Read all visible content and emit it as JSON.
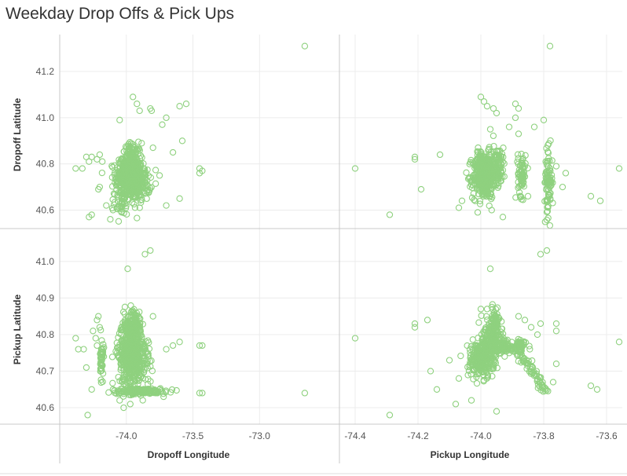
{
  "title": "Weekday Drop Offs & Pick Ups",
  "colors": {
    "point": "#8fd17f",
    "gridline": "#ececec",
    "panel_border": "#c8c8c8"
  },
  "chart_data": {
    "type": "scatter",
    "title": "Weekday Drop Offs & Pick Ups",
    "grid": true,
    "columns": [
      {
        "label": "Dropoff Longitude",
        "xlim": [
          -74.5,
          -72.4
        ],
        "ticks": [
          -74.0,
          -73.5,
          -73.0
        ]
      },
      {
        "label": "Pickup Longitude",
        "xlim": [
          -74.45,
          -73.55
        ],
        "ticks": [
          -74.4,
          -74.2,
          -74.0,
          -73.8,
          -73.6
        ]
      }
    ],
    "rows": [
      {
        "label": "Dropoff Latitude",
        "ylim": [
          40.52,
          41.36
        ],
        "ticks": [
          40.6,
          40.8,
          41.0,
          41.2
        ]
      },
      {
        "label": "Pickup Latitude",
        "ylim": [
          40.555,
          41.09
        ],
        "ticks": [
          40.6,
          40.7,
          40.8,
          40.9,
          41.0
        ]
      }
    ],
    "panels": [
      {
        "row": "Dropoff Latitude",
        "column": "Dropoff Longitude",
        "clusters": [
          {
            "x": -73.98,
            "y": 40.74,
            "sx": 0.05,
            "sy": 0.045,
            "n": 420
          },
          {
            "x": -73.96,
            "y": 40.83,
            "sx": 0.035,
            "sy": 0.03,
            "n": 90
          },
          {
            "x": -73.9,
            "y": 40.72,
            "sx": 0.04,
            "sy": 0.04,
            "n": 120
          },
          {
            "x": -74.03,
            "y": 40.63,
            "sx": 0.03,
            "sy": 0.025,
            "n": 40
          }
        ],
        "points": [
          [
            -72.66,
            41.31
          ],
          [
            -74.38,
            40.78
          ],
          [
            -74.33,
            40.78
          ],
          [
            -74.3,
            40.83
          ],
          [
            -74.28,
            40.81
          ],
          [
            -74.26,
            40.83
          ],
          [
            -74.22,
            40.82
          ],
          [
            -74.2,
            40.84
          ],
          [
            -74.18,
            40.81
          ],
          [
            -74.28,
            40.57
          ],
          [
            -74.26,
            40.58
          ],
          [
            -74.2,
            40.7
          ],
          [
            -74.21,
            40.69
          ],
          [
            -74.15,
            40.62
          ],
          [
            -73.95,
            41.09
          ],
          [
            -73.92,
            41.06
          ],
          [
            -73.82,
            41.04
          ],
          [
            -73.81,
            41.03
          ],
          [
            -73.6,
            41.05
          ],
          [
            -73.55,
            41.06
          ],
          [
            -73.7,
            41.0
          ],
          [
            -73.73,
            40.97
          ],
          [
            -73.9,
            41.03
          ],
          [
            -74.05,
            40.99
          ],
          [
            -73.58,
            40.9
          ],
          [
            -73.65,
            40.85
          ],
          [
            -73.45,
            40.78
          ],
          [
            -73.43,
            40.77
          ],
          [
            -73.45,
            40.76
          ],
          [
            -73.6,
            40.65
          ],
          [
            -73.7,
            40.62
          ],
          [
            -74.12,
            40.56
          ],
          [
            -74.1,
            40.6
          ],
          [
            -73.8,
            40.87
          ],
          [
            -73.75,
            40.75
          ]
        ]
      },
      {
        "row": "Dropoff Latitude",
        "column": "Pickup Longitude",
        "clusters": [
          {
            "x": -73.99,
            "y": 40.75,
            "sx": 0.018,
            "sy": 0.05,
            "n": 420
          },
          {
            "x": -73.95,
            "y": 40.79,
            "sx": 0.015,
            "sy": 0.04,
            "n": 110
          },
          {
            "x": -73.87,
            "y": 40.76,
            "sx": 0.006,
            "sy": 0.05,
            "n": 70
          },
          {
            "x": -73.785,
            "y": 40.72,
            "sx": 0.006,
            "sy": 0.07,
            "n": 90
          }
        ],
        "points": [
          [
            -73.78,
            41.31
          ],
          [
            -74.4,
            40.78
          ],
          [
            -74.29,
            40.58
          ],
          [
            -74.21,
            40.83
          ],
          [
            -74.21,
            40.82
          ],
          [
            -74.13,
            40.84
          ],
          [
            -74.19,
            40.69
          ],
          [
            -74.03,
            40.71
          ],
          [
            -74.07,
            40.61
          ],
          [
            -74.06,
            40.64
          ],
          [
            -74.0,
            41.09
          ],
          [
            -73.99,
            41.07
          ],
          [
            -73.98,
            41.05
          ],
          [
            -73.96,
            41.04
          ],
          [
            -73.89,
            41.06
          ],
          [
            -73.88,
            41.04
          ],
          [
            -73.89,
            41.0
          ],
          [
            -73.88,
            40.93
          ],
          [
            -73.8,
            40.99
          ],
          [
            -73.83,
            40.96
          ],
          [
            -73.91,
            40.96
          ],
          [
            -73.76,
            40.79
          ],
          [
            -73.74,
            40.7
          ],
          [
            -73.73,
            40.76
          ],
          [
            -73.65,
            40.66
          ],
          [
            -73.62,
            40.64
          ],
          [
            -73.56,
            40.78
          ],
          [
            -73.95,
            41.02
          ],
          [
            -73.97,
            40.95
          ],
          [
            -74.01,
            40.59
          ],
          [
            -73.93,
            40.57
          ],
          [
            -73.85,
            40.66
          ]
        ]
      },
      {
        "row": "Pickup Latitude",
        "column": "Dropoff Longitude",
        "clusters": [
          {
            "x": -73.97,
            "y": 40.75,
            "sx": 0.045,
            "sy": 0.045,
            "n": 460
          },
          {
            "x": -73.95,
            "y": 40.82,
            "sx": 0.03,
            "sy": 0.03,
            "n": 90
          },
          {
            "x": -74.185,
            "y": 40.73,
            "sx": 0.006,
            "sy": 0.03,
            "n": 45
          },
          {
            "x": -73.9,
            "y": 40.645,
            "sx": 0.1,
            "sy": 0.004,
            "n": 160
          },
          {
            "x": -73.88,
            "y": 40.74,
            "sx": 0.04,
            "sy": 0.035,
            "n": 80
          }
        ],
        "points": [
          [
            -73.99,
            40.98
          ],
          [
            -73.86,
            41.02
          ],
          [
            -73.82,
            41.03
          ],
          [
            -72.66,
            40.64
          ],
          [
            -74.38,
            40.79
          ],
          [
            -74.36,
            40.76
          ],
          [
            -74.32,
            40.76
          ],
          [
            -74.3,
            40.71
          ],
          [
            -74.29,
            40.58
          ],
          [
            -74.26,
            40.65
          ],
          [
            -74.22,
            40.77
          ],
          [
            -74.2,
            40.82
          ],
          [
            -74.21,
            40.85
          ],
          [
            -74.22,
            40.84
          ],
          [
            -74.25,
            40.81
          ],
          [
            -74.23,
            40.79
          ],
          [
            -74.05,
            40.62
          ],
          [
            -74.02,
            40.6
          ],
          [
            -73.97,
            40.61
          ],
          [
            -73.45,
            40.77
          ],
          [
            -73.43,
            40.77
          ],
          [
            -73.45,
            40.64
          ],
          [
            -73.43,
            40.64
          ],
          [
            -73.6,
            40.78
          ],
          [
            -73.65,
            40.77
          ],
          [
            -73.7,
            40.76
          ],
          [
            -73.75,
            40.65
          ],
          [
            -73.72,
            40.63
          ],
          [
            -73.8,
            40.85
          ],
          [
            -74.1,
            40.65
          ]
        ]
      },
      {
        "row": "Pickup Latitude",
        "column": "Pickup Longitude",
        "clusters": [
          {
            "x": -74.0,
            "y": 40.73,
            "sx": 0.02,
            "sy": 0.025,
            "n": 230
          },
          {
            "x": -73.97,
            "y": 40.78,
            "sx": 0.018,
            "sy": 0.03,
            "n": 170
          },
          {
            "x": -73.955,
            "y": 40.83,
            "sx": 0.01,
            "sy": 0.025,
            "n": 70
          },
          {
            "x": -73.93,
            "y": 40.765,
            "sx": 0.035,
            "sy": 0.007,
            "n": 110
          },
          {
            "x": -73.875,
            "y": 40.77,
            "sx": 0.005,
            "sy": 0.008,
            "n": 40
          }
        ],
        "line": {
          "from": [
            -73.89,
            40.76
          ],
          "to": [
            -73.79,
            40.645
          ],
          "n": 70,
          "jitter": 0.006
        },
        "points": [
          [
            -73.97,
            40.98
          ],
          [
            -73.81,
            41.02
          ],
          [
            -73.79,
            41.03
          ],
          [
            -74.4,
            40.79
          ],
          [
            -74.29,
            40.58
          ],
          [
            -74.21,
            40.83
          ],
          [
            -74.21,
            40.82
          ],
          [
            -74.17,
            40.84
          ],
          [
            -74.16,
            40.7
          ],
          [
            -74.14,
            40.65
          ],
          [
            -74.1,
            40.73
          ],
          [
            -74.07,
            40.68
          ],
          [
            -74.08,
            40.61
          ],
          [
            -74.03,
            40.62
          ],
          [
            -73.95,
            40.59
          ],
          [
            -73.88,
            40.85
          ],
          [
            -73.86,
            40.84
          ],
          [
            -73.84,
            40.82
          ],
          [
            -73.82,
            40.8
          ],
          [
            -73.81,
            40.83
          ],
          [
            -73.76,
            40.83
          ],
          [
            -73.76,
            40.81
          ],
          [
            -73.76,
            40.72
          ],
          [
            -73.77,
            40.67
          ],
          [
            -73.65,
            40.66
          ],
          [
            -73.63,
            40.65
          ],
          [
            -73.56,
            40.78
          ],
          [
            -74.0,
            40.87
          ],
          [
            -73.98,
            40.87
          ]
        ]
      }
    ]
  }
}
